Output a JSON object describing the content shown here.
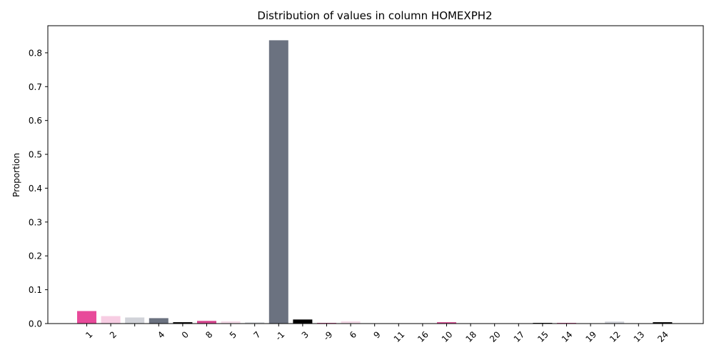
{
  "chart_data": {
    "type": "bar",
    "title": "Distribution of values in column HOMEXPH2",
    "xlabel": "",
    "ylabel": "Proportion",
    "categories": [
      "1",
      "2",
      "",
      "4",
      "0",
      "8",
      "5",
      "7",
      "-1",
      "3",
      "-9",
      "6",
      "9",
      "11",
      "16",
      "10",
      "18",
      "20",
      "17",
      "15",
      "14",
      "19",
      "12",
      "13",
      "24"
    ],
    "values": [
      0.037,
      0.022,
      0.018,
      0.016,
      0.004,
      0.008,
      0.007,
      0.004,
      0.837,
      0.012,
      0.002,
      0.007,
      0.001,
      0.001,
      0.001,
      0.004,
      0.001,
      0.001,
      0.001,
      0.002,
      0.002,
      0.001,
      0.006,
      0.001,
      0.004
    ],
    "colors": [
      "#e84a9a",
      "#f7cde3",
      "#d1d3d9",
      "#6b7280",
      "#000000",
      "#d6478f",
      "#f5dbe8",
      "#d9dadf",
      "#6b7280",
      "#000000",
      "#d6478f",
      "#f5dbe8",
      "#d9dadf",
      "#6b7280",
      "#000000",
      "#d6478f",
      "#f5dbe8",
      "#d9dadf",
      "#6b7280",
      "#000000",
      "#d6478f",
      "#f5dbe8",
      "#d1d3d9",
      "#6b7280",
      "#000000"
    ],
    "ylim": [
      0,
      0.88
    ],
    "yticks": [
      0.0,
      0.1,
      0.2,
      0.3,
      0.4,
      0.5,
      0.6,
      0.7,
      0.8
    ],
    "grid": false,
    "legend": "none"
  }
}
